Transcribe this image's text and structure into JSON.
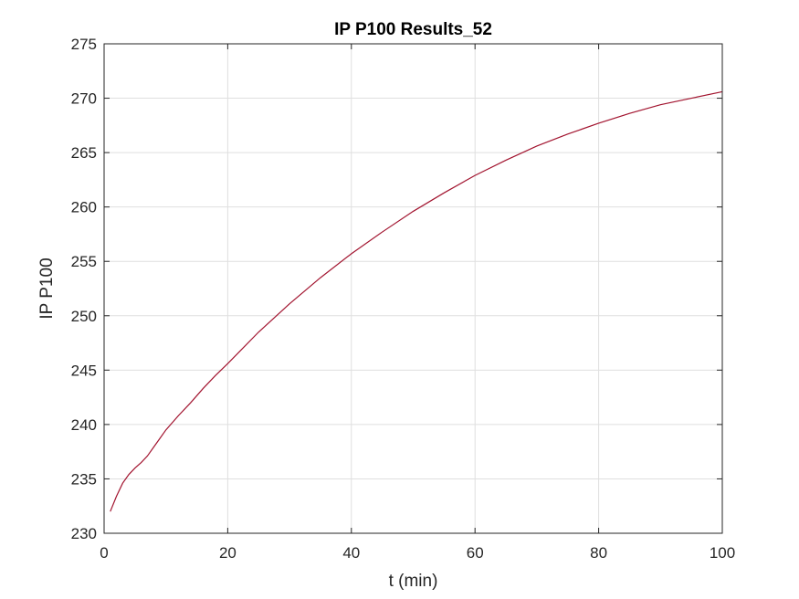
{
  "chart_data": {
    "type": "line",
    "title": "IP P100 Results_52",
    "xlabel": "t (min)",
    "ylabel": "IP P100",
    "xlim": [
      0,
      100
    ],
    "ylim": [
      230,
      275
    ],
    "xticks": [
      0,
      20,
      40,
      60,
      80,
      100
    ],
    "yticks": [
      230,
      235,
      240,
      245,
      250,
      255,
      260,
      265,
      270,
      275
    ],
    "grid": true,
    "series": [
      {
        "color": "#a2142f",
        "x": [
          1,
          2,
          3,
          4,
          5,
          6,
          7,
          8,
          9,
          10,
          12,
          14,
          16,
          18,
          20,
          25,
          30,
          35,
          40,
          45,
          50,
          55,
          60,
          65,
          70,
          75,
          80,
          85,
          90,
          95,
          100
        ],
        "y": [
          232.0,
          233.4,
          234.6,
          235.4,
          236.0,
          236.5,
          237.1,
          237.9,
          238.7,
          239.5,
          240.8,
          242.0,
          243.3,
          244.5,
          245.6,
          248.5,
          251.1,
          253.5,
          255.7,
          257.7,
          259.6,
          261.3,
          262.9,
          264.3,
          265.6,
          266.7,
          267.7,
          268.6,
          269.4,
          270.0,
          270.6
        ]
      }
    ]
  }
}
